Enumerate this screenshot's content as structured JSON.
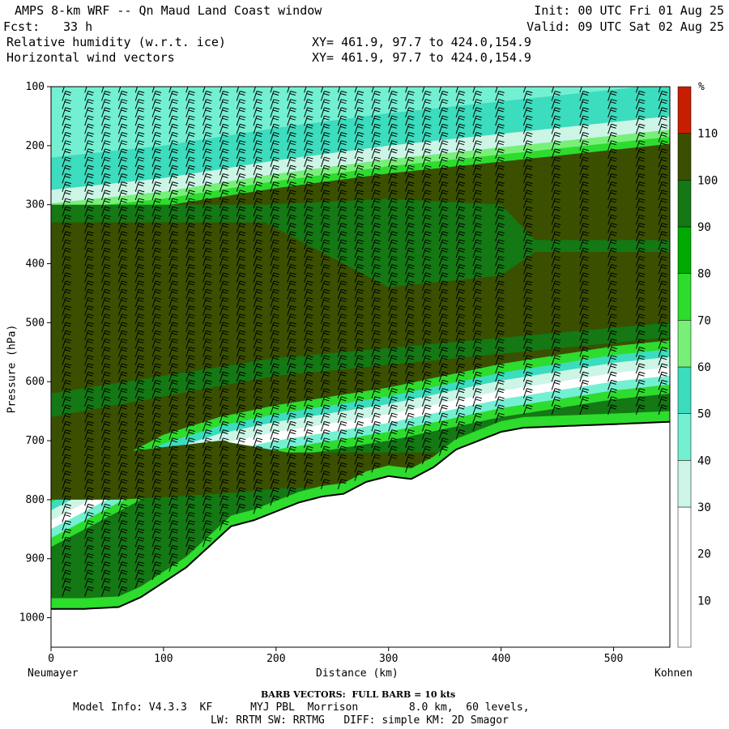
{
  "header": {
    "title_left": "AMPS 8-km WRF -- Qn Maud Land Coast window",
    "fcst_label": "Fcst:",
    "fcst_value": "33 h",
    "field1": "Relative humidity (w.r.t. ice)",
    "field2": "Horizontal wind vectors",
    "xy1": "XY= 461.9, 97.7 to 424.0,154.9",
    "xy2": "XY= 461.9, 97.7 to 424.0,154.9",
    "init": "Init: 00 UTC Fri 01 Aug 25",
    "valid": "Valid: 09 UTC Sat 02 Aug 25"
  },
  "footer": {
    "barb_note": "BARB VECTORS:  FULL BARB = 10 kts",
    "model_info": "Model Info: V4.3.3  KF      MYJ PBL  Morrison        8.0 km,  60 levels,",
    "physics": "LW: RRTM SW: RRTMG   DIFF: simple KM: 2D Smagor"
  },
  "colors": {
    "rh_10": "#ffffff",
    "rh_20": "#ffffff",
    "rh_30": "#ffffff",
    "rh_40": "#ccf5e6",
    "rh_50": "#73f0d2",
    "rh_60": "#3cdcbe",
    "rh_70": "#78f078",
    "rh_80": "#2ddc2d",
    "rh_90": "#00aa00",
    "rh_100": "#147814",
    "rh_110": "#3a5000",
    "rh_over": "#c81e00"
  },
  "chart_data": {
    "type": "cross-section",
    "title": "Relative humidity (w.r.t. ice)",
    "overlay": "Horizontal wind vectors",
    "xlabel": "Distance (km)",
    "ylabel": "Pressure (hPa)",
    "xlim": [
      0,
      550
    ],
    "ylim_pressure": [
      1050,
      100
    ],
    "x_ticks": [
      0,
      100,
      200,
      300,
      400,
      500
    ],
    "y_ticks": [
      100,
      200,
      300,
      400,
      500,
      600,
      700,
      800,
      900,
      1000
    ],
    "x_end_labels": {
      "left": "Neumayer",
      "right": "Kohnen"
    },
    "colorbar": {
      "unit": "%",
      "ticks": [
        10,
        20,
        30,
        40,
        50,
        60,
        70,
        80,
        90,
        100,
        110
      ],
      "bins": [
        {
          "min": 0,
          "max": 30,
          "color": "#ffffff"
        },
        {
          "min": 30,
          "max": 40,
          "color": "#ccf5e6"
        },
        {
          "min": 40,
          "max": 50,
          "color": "#73f0d2"
        },
        {
          "min": 50,
          "max": 60,
          "color": "#3cdcbe"
        },
        {
          "min": 60,
          "max": 70,
          "color": "#78f078"
        },
        {
          "min": 70,
          "max": 80,
          "color": "#2ddc2d"
        },
        {
          "min": 80,
          "max": 90,
          "color": "#00aa00"
        },
        {
          "min": 90,
          "max": 100,
          "color": "#147814"
        },
        {
          "min": 100,
          "max": 110,
          "color": "#3a5000"
        },
        {
          "min": 110,
          "max": 120,
          "color": "#c81e00"
        }
      ]
    },
    "terrain_surface": [
      {
        "km": 0,
        "hPa": 985
      },
      {
        "km": 30,
        "hPa": 985
      },
      {
        "km": 60,
        "hPa": 982
      },
      {
        "km": 80,
        "hPa": 965
      },
      {
        "km": 100,
        "hPa": 940
      },
      {
        "km": 120,
        "hPa": 915
      },
      {
        "km": 140,
        "hPa": 880
      },
      {
        "km": 160,
        "hPa": 845
      },
      {
        "km": 180,
        "hPa": 835
      },
      {
        "km": 200,
        "hPa": 820
      },
      {
        "km": 220,
        "hPa": 805
      },
      {
        "km": 240,
        "hPa": 795
      },
      {
        "km": 260,
        "hPa": 790
      },
      {
        "km": 280,
        "hPa": 770
      },
      {
        "km": 300,
        "hPa": 760
      },
      {
        "km": 320,
        "hPa": 765
      },
      {
        "km": 340,
        "hPa": 745
      },
      {
        "km": 360,
        "hPa": 715
      },
      {
        "km": 380,
        "hPa": 700
      },
      {
        "km": 400,
        "hPa": 685
      },
      {
        "km": 420,
        "hPa": 678
      },
      {
        "km": 460,
        "hPa": 675
      },
      {
        "km": 500,
        "hPa": 672
      },
      {
        "km": 550,
        "hPa": 668
      }
    ],
    "moist_layer_base": [
      {
        "km": 0,
        "hPa": 790
      },
      {
        "km": 50,
        "hPa": 740
      },
      {
        "km": 100,
        "hPa": 690
      },
      {
        "km": 150,
        "hPa": 660
      },
      {
        "km": 200,
        "hPa": 640
      },
      {
        "km": 250,
        "hPa": 625
      },
      {
        "km": 300,
        "hPa": 610
      },
      {
        "km": 350,
        "hPa": 590
      },
      {
        "km": 400,
        "hPa": 570
      },
      {
        "km": 450,
        "hPa": 555
      },
      {
        "km": 500,
        "hPa": 540
      },
      {
        "km": 550,
        "hPa": 530
      }
    ],
    "moist_layer_top": [
      {
        "km": 0,
        "hPa": 310
      },
      {
        "km": 100,
        "hPa": 290
      },
      {
        "km": 200,
        "hPa": 260
      },
      {
        "km": 300,
        "hPa": 235
      },
      {
        "km": 400,
        "hPa": 215
      },
      {
        "km": 500,
        "hPa": 195
      },
      {
        "km": 550,
        "hPa": 185
      }
    ],
    "barb_columns_km": [
      10,
      30,
      45,
      60,
      75,
      90,
      105,
      120,
      135,
      150,
      165,
      180,
      195,
      210,
      225,
      240,
      255,
      270,
      285,
      300,
      315,
      330,
      345,
      360,
      375,
      395,
      420,
      445,
      470,
      495,
      520,
      540
    ]
  }
}
